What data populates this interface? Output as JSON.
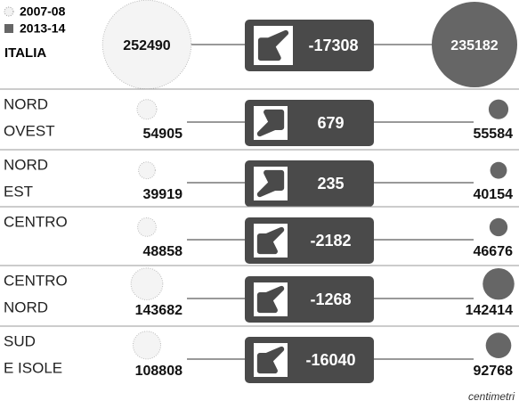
{
  "legend": [
    "2007-08",
    "2013-14"
  ],
  "total": {
    "label": "ITALIA",
    "before": 252490,
    "after": 235182,
    "change": -17308
  },
  "rows": [
    {
      "label": [
        "NORD",
        "OVEST"
      ],
      "before": 54905,
      "after": 55584,
      "change": 679
    },
    {
      "label": [
        "NORD",
        "EST"
      ],
      "before": 39919,
      "after": 40154,
      "change": 235
    },
    {
      "label": [
        "CENTRO"
      ],
      "before": 48858,
      "after": 46676,
      "change": -2182
    },
    {
      "label": [
        "CENTRO",
        "NORD"
      ],
      "before": 143682,
      "after": 142414,
      "change": -1268
    },
    {
      "label": [
        "SUD",
        "E ISOLE"
      ],
      "before": 108808,
      "after": 92768,
      "change": -16040
    }
  ],
  "source": "centimetri"
}
